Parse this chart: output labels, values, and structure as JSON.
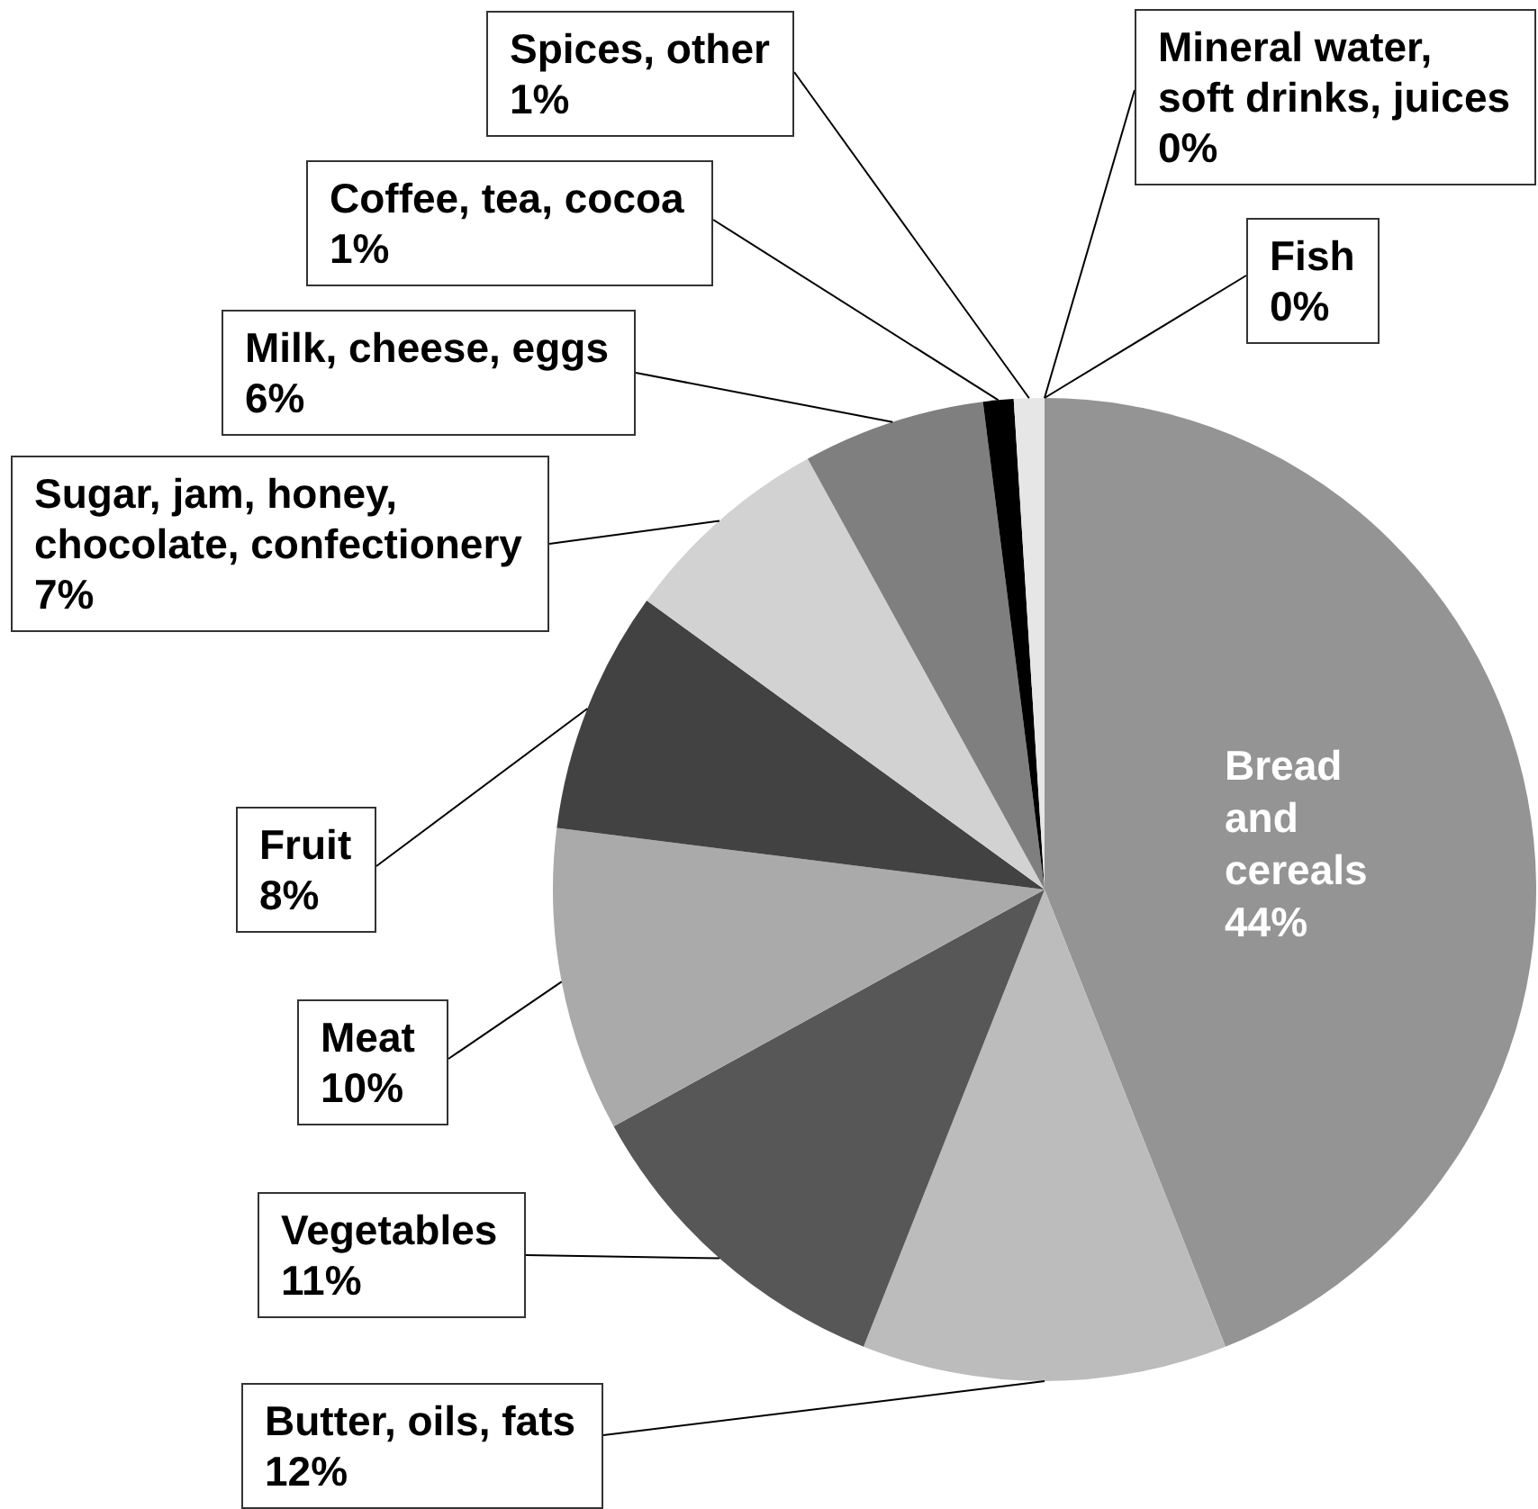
{
  "chart_data": {
    "type": "pie",
    "categories": [
      "Bread and cereals",
      "Butter, oils, fats",
      "Vegetables",
      "Meat",
      "Fruit",
      "Sugar, jam, honey, chocolate, confectionery",
      "Milk, cheese, eggs",
      "Coffee, tea, cocoa",
      "Spices, other",
      "Mineral water, soft drinks, juices",
      "Fish"
    ],
    "values": [
      44,
      12,
      11,
      10,
      8,
      7,
      6,
      1,
      1,
      0,
      0
    ],
    "value_labels": [
      "44%",
      "12%",
      "11%",
      "10%",
      "8%",
      "7%",
      "6%",
      "1%",
      "1%",
      "0%",
      "0%"
    ],
    "colors": [
      "#949494",
      "#bcbcbc",
      "#575757",
      "#aaaaaa",
      "#424242",
      "#d2d2d2",
      "#7f7f7f",
      "#000000",
      "#e6e6e6",
      "#ffffff",
      "#ffffff"
    ]
  }
}
